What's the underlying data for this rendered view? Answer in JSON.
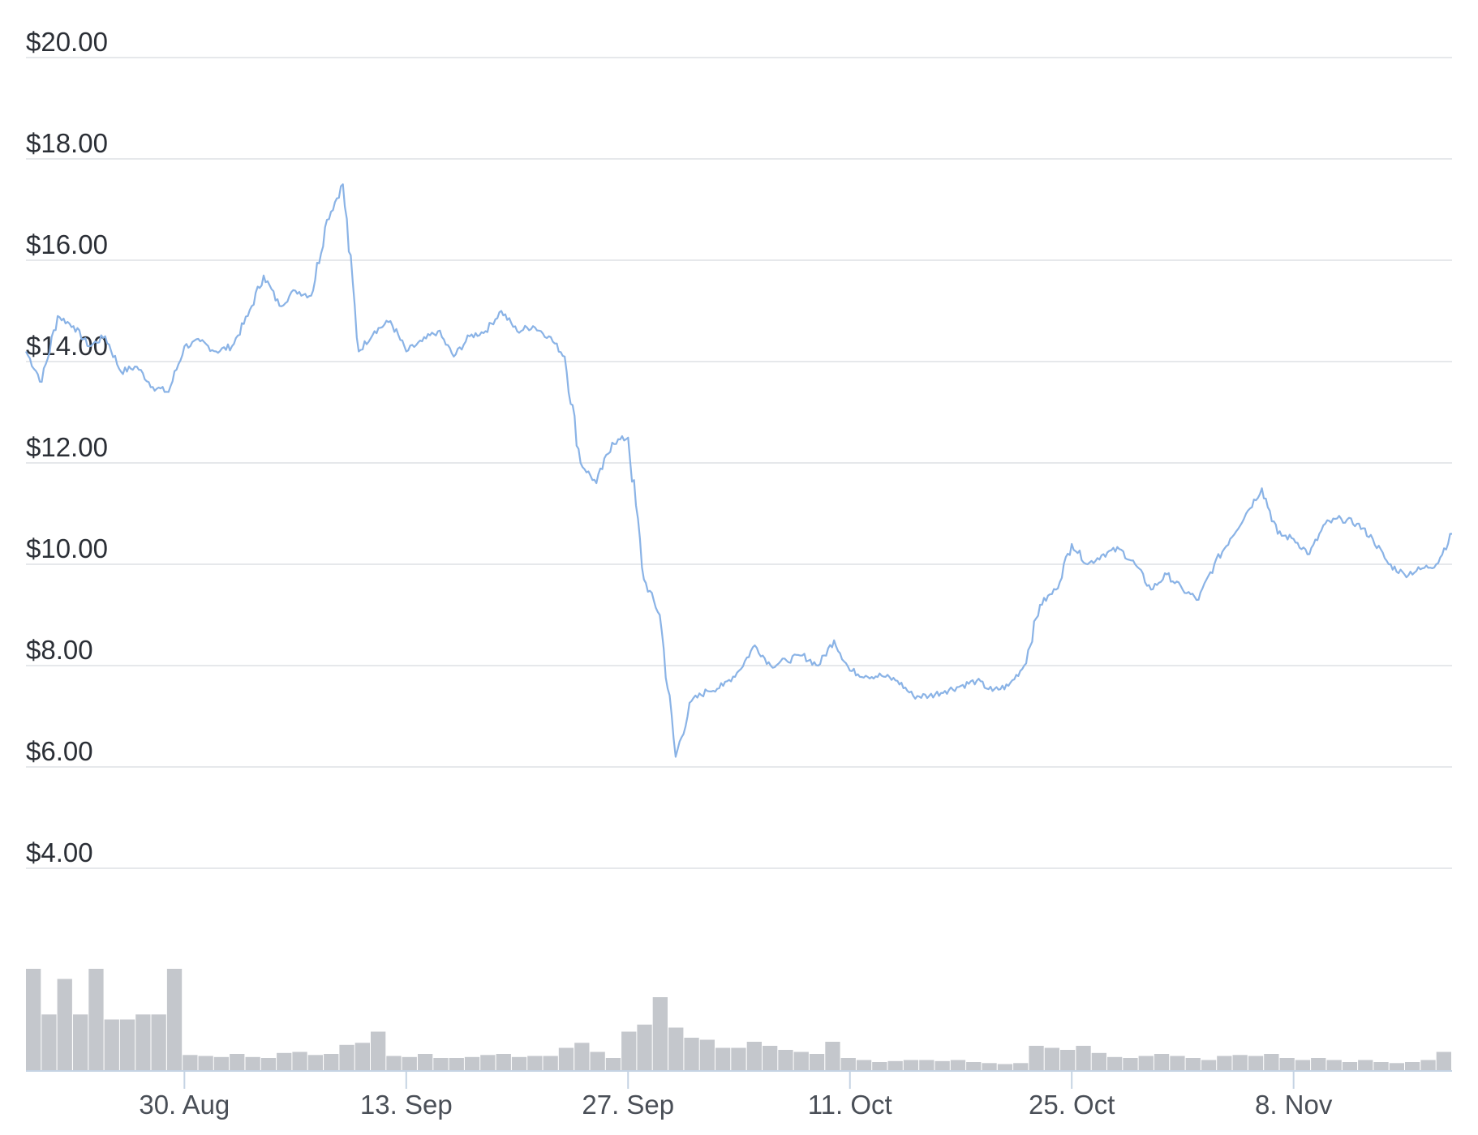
{
  "colors": {
    "price_line": "#8ab3e6",
    "volume_bar": "#c4c7cc",
    "gridline": "#e6e8eb",
    "axis": "#c5d3e3",
    "text": "#2b2f36"
  },
  "chart_data": {
    "type": "line",
    "x_start": "2021-08-20",
    "x_end": "2021-11-18",
    "ylim": [
      4,
      20
    ],
    "y_ticks": [
      20,
      18,
      16,
      14,
      12,
      10,
      8,
      6,
      4
    ],
    "y_tick_labels": [
      "$20.00",
      "$18.00",
      "$16.00",
      "$14.00",
      "$12.00",
      "$10.00",
      "$8.00",
      "$6.00",
      "$4.00"
    ],
    "x_tick_dates": [
      "2021-08-30",
      "2021-09-13",
      "2021-09-27",
      "2021-10-11",
      "2021-10-25",
      "2021-11-08"
    ],
    "x_tick_labels": [
      "30. Aug",
      "13. Sep",
      "27. Sep",
      "11. Oct",
      "25. Oct",
      "8. Nov"
    ],
    "grid": true,
    "legend": "none",
    "series": [
      {
        "kind": "price",
        "x": [
          "2021-08-20",
          "2021-08-21",
          "2021-08-22",
          "2021-08-23",
          "2021-08-24",
          "2021-08-25",
          "2021-08-26",
          "2021-08-27",
          "2021-08-28",
          "2021-08-29",
          "2021-08-30",
          "2021-08-31",
          "2021-09-01",
          "2021-09-02",
          "2021-09-03",
          "2021-09-04",
          "2021-09-05",
          "2021-09-06",
          "2021-09-07",
          "2021-09-08",
          "2021-09-09",
          "2021-09-10",
          "2021-09-11",
          "2021-09-12",
          "2021-09-13",
          "2021-09-14",
          "2021-09-15",
          "2021-09-16",
          "2021-09-17",
          "2021-09-18",
          "2021-09-19",
          "2021-09-20",
          "2021-09-21",
          "2021-09-22",
          "2021-09-23",
          "2021-09-24",
          "2021-09-25",
          "2021-09-26",
          "2021-09-27",
          "2021-09-28",
          "2021-09-29",
          "2021-09-30",
          "2021-10-01",
          "2021-10-02",
          "2021-10-03",
          "2021-10-04",
          "2021-10-05",
          "2021-10-06",
          "2021-10-07",
          "2021-10-08",
          "2021-10-09",
          "2021-10-10",
          "2021-10-11",
          "2021-10-12",
          "2021-10-13",
          "2021-10-14",
          "2021-10-15",
          "2021-10-16",
          "2021-10-17",
          "2021-10-18",
          "2021-10-19",
          "2021-10-20",
          "2021-10-21",
          "2021-10-22",
          "2021-10-23",
          "2021-10-24",
          "2021-10-25",
          "2021-10-26",
          "2021-10-27",
          "2021-10-28",
          "2021-10-29",
          "2021-10-30",
          "2021-10-31",
          "2021-11-01",
          "2021-11-02",
          "2021-11-03",
          "2021-11-04",
          "2021-11-05",
          "2021-11-06",
          "2021-11-07",
          "2021-11-08",
          "2021-11-09",
          "2021-11-10",
          "2021-11-11",
          "2021-11-12",
          "2021-11-13",
          "2021-11-14",
          "2021-11-15",
          "2021-11-16",
          "2021-11-17",
          "2021-11-18"
        ],
        "values": [
          14.2,
          13.6,
          14.9,
          14.7,
          14.3,
          14.5,
          13.8,
          13.9,
          13.5,
          13.4,
          14.3,
          14.4,
          14.2,
          14.3,
          14.9,
          15.7,
          15.1,
          15.4,
          15.3,
          16.8,
          17.5,
          14.2,
          14.6,
          14.8,
          14.2,
          14.4,
          14.6,
          14.1,
          14.5,
          14.6,
          15.0,
          14.6,
          14.7,
          14.5,
          14.1,
          12.0,
          11.6,
          12.4,
          12.5,
          9.7,
          9.0,
          6.2,
          7.3,
          7.5,
          7.6,
          7.9,
          8.4,
          8.0,
          8.1,
          8.2,
          8.0,
          8.5,
          7.9,
          7.8,
          7.8,
          7.7,
          7.4,
          7.4,
          7.5,
          7.6,
          7.7,
          7.5,
          7.6,
          8.0,
          9.2,
          9.5,
          10.4,
          10.0,
          10.2,
          10.3,
          10.0,
          9.5,
          9.8,
          9.5,
          9.3,
          10.0,
          10.5,
          11.0,
          11.5,
          10.6,
          10.5,
          10.2,
          10.8,
          10.9,
          10.8,
          10.5,
          10.0,
          9.8,
          9.9,
          10.0,
          10.6
        ]
      },
      {
        "kind": "volume",
        "values": [
          1.0,
          0.55,
          0.9,
          0.55,
          1.0,
          0.5,
          0.5,
          0.55,
          0.55,
          1.0,
          0.15,
          0.14,
          0.13,
          0.16,
          0.13,
          0.12,
          0.17,
          0.18,
          0.15,
          0.16,
          0.25,
          0.27,
          0.38,
          0.14,
          0.13,
          0.16,
          0.12,
          0.12,
          0.13,
          0.15,
          0.16,
          0.13,
          0.14,
          0.14,
          0.22,
          0.27,
          0.18,
          0.12,
          0.38,
          0.45,
          0.72,
          0.42,
          0.32,
          0.3,
          0.22,
          0.22,
          0.28,
          0.24,
          0.2,
          0.18,
          0.16,
          0.28,
          0.12,
          0.1,
          0.08,
          0.09,
          0.1,
          0.1,
          0.09,
          0.1,
          0.08,
          0.07,
          0.06,
          0.07,
          0.24,
          0.22,
          0.2,
          0.24,
          0.17,
          0.13,
          0.12,
          0.14,
          0.16,
          0.14,
          0.12,
          0.1,
          0.14,
          0.15,
          0.14,
          0.16,
          0.12,
          0.1,
          0.12,
          0.1,
          0.08,
          0.1,
          0.08,
          0.07,
          0.08,
          0.1,
          0.18
        ]
      }
    ]
  }
}
